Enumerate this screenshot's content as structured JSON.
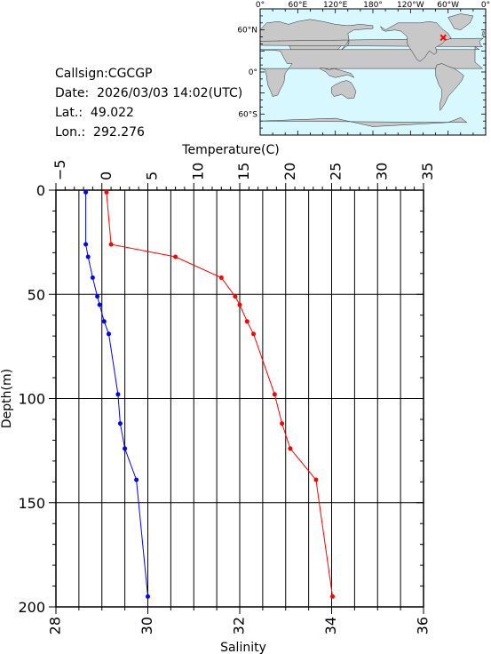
{
  "station": {
    "callsign_label": "Callsign:CGCGP",
    "date_label": "Date:  2026/03/03 14:02(UTC)",
    "lat_label": "Lat.:  49.022",
    "lon_label": "Lon.:  292.276"
  },
  "map": {
    "lon_labels": [
      "0°",
      "60°E",
      "120°E",
      "180°",
      "120°W",
      "60°W",
      "0°"
    ],
    "lat_labels": [
      "60°N",
      "0°",
      "60°S"
    ],
    "ocean_color": "#d8f8ff",
    "land_color": "#c8c8c8",
    "marker_color": "#ff0000",
    "marker_lon": 292.276,
    "marker_lat": 49.022
  },
  "chart_data": {
    "type": "line",
    "ylabel": "Depth(m)",
    "ylim": [
      200,
      0
    ],
    "yticks": [
      "0",
      "50",
      "100",
      "150",
      "200"
    ],
    "temperature_axis": {
      "label": "Temperature(C)",
      "range": [
        -5,
        35
      ],
      "ticks": [
        "−5",
        "0",
        "5",
        "10",
        "15",
        "20",
        "25",
        "30",
        "35"
      ]
    },
    "salinity_axis": {
      "label": "Salinity",
      "range": [
        28,
        36
      ],
      "ticks": [
        "28",
        "30",
        "32",
        "34",
        "36"
      ]
    },
    "grid": true,
    "series": [
      {
        "variable": "temperature",
        "color": "#ff0000",
        "depth": [
          1,
          26,
          32,
          42,
          51,
          55,
          63,
          69,
          98,
          112,
          124,
          139,
          195
        ],
        "values": [
          0.5,
          1.0,
          8.0,
          13.0,
          14.5,
          15.0,
          15.8,
          16.5,
          18.8,
          19.6,
          20.5,
          23.3,
          25.1
        ]
      },
      {
        "variable": "salinity",
        "color": "#0000ff",
        "depth": [
          1,
          26,
          32,
          42,
          51,
          55,
          63,
          69,
          98,
          112,
          124,
          139,
          195
        ],
        "values": [
          28.65,
          28.65,
          28.7,
          28.8,
          28.9,
          28.95,
          29.05,
          29.15,
          29.35,
          29.4,
          29.5,
          29.75,
          30.0
        ]
      }
    ]
  }
}
